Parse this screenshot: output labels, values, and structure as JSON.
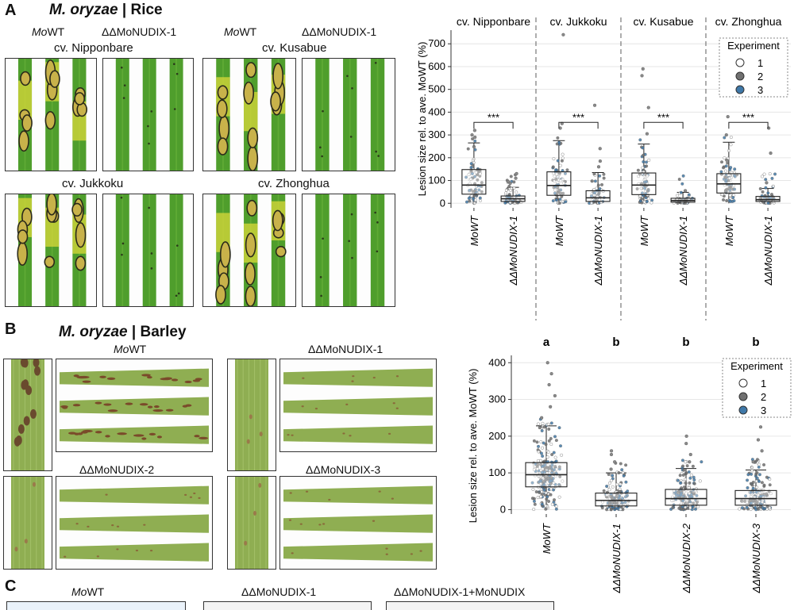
{
  "panel_a": {
    "letter": "A",
    "species": "M. oryzae",
    "host_sep": " | ",
    "host": "Rice",
    "header_wt_left": "WT",
    "header_wt_right": "WT",
    "header_mut_left": "ΔΔMoNUDIX-1",
    "header_mut_right": "ΔΔMoNUDIX-1",
    "cultivars": {
      "nipponbare": "cv. Nipponbare",
      "kusabue": "cv. Kusabue",
      "jukkoku": "cv. Jukkoku",
      "zhonghua": "cv. Zhonghua"
    }
  },
  "panel_b": {
    "letter": "B",
    "species": "M. oryzae",
    "host_sep": " | ",
    "host": "Barley",
    "strain_wt": "WT",
    "strain_1": "ΔΔMoNUDIX-1",
    "strain_2": "ΔΔMoNUDIX-2",
    "strain_3": "ΔΔMoNUDIX-3"
  },
  "panel_c": {
    "letter": "C",
    "label_wt": "WT",
    "label_mut": "ΔΔMoNUDIX-1",
    "label_comp": "ΔΔMoNUDIX-1+MoNUDIX"
  },
  "colors": {
    "leaf_green": "#4f9e2c",
    "leaf_yellow": "#d9d83a",
    "barley_green": "#8fae52",
    "exp1": "#ffffff",
    "exp2": "#707070",
    "exp3": "#3f78a8"
  },
  "chart_data": [
    {
      "type": "box",
      "panel": "A",
      "ylabel": "Lesion size rel. to ave. MoWT (%)",
      "ylim": [
        -20,
        760
      ],
      "yticks": [
        0,
        100,
        200,
        300,
        400,
        500,
        600,
        700
      ],
      "facets": [
        "cv. Nipponbare",
        "cv. Jukkoku",
        "cv. Kusabue",
        "cv. Zhonghua"
      ],
      "categories": [
        "MoWT",
        "ΔΔMoNUDIX-1"
      ],
      "significance": [
        "***",
        "***",
        "***",
        "***"
      ],
      "legend": {
        "title": "Experiment",
        "entries": [
          "1",
          "2",
          "3"
        ]
      },
      "series": [
        {
          "facet": "cv. Nipponbare",
          "name": "MoWT",
          "q1": 40,
          "median": 80,
          "q3": 148,
          "whisker_low": 0,
          "whisker_high": 265,
          "outliers": [
            300,
            320,
            290
          ]
        },
        {
          "facet": "cv. Nipponbare",
          "name": "ΔΔMoNUDIX-1",
          "q1": 8,
          "median": 20,
          "q3": 32,
          "whisker_low": 0,
          "whisker_high": 70,
          "outliers": [
            95,
            110,
            88,
            130
          ]
        },
        {
          "facet": "cv. Jukkoku",
          "name": "MoWT",
          "q1": 35,
          "median": 78,
          "q3": 138,
          "whisker_low": 0,
          "whisker_high": 275,
          "outliers": [
            330,
            350,
            740
          ]
        },
        {
          "facet": "cv. Jukkoku",
          "name": "ΔΔMoNUDIX-1",
          "q1": 8,
          "median": 24,
          "q3": 55,
          "whisker_low": 0,
          "whisker_high": 135,
          "outliers": [
            160,
            185,
            240,
            430
          ]
        },
        {
          "facet": "cv. Kusabue",
          "name": "MoWT",
          "q1": 38,
          "median": 80,
          "q3": 133,
          "whisker_low": 0,
          "whisker_high": 260,
          "outliers": [
            305,
            420,
            560,
            590
          ]
        },
        {
          "facet": "cv. Kusabue",
          "name": "ΔΔMoNUDIX-1",
          "q1": 5,
          "median": 12,
          "q3": 22,
          "whisker_low": 0,
          "whisker_high": 48,
          "outliers": [
            55
          ]
        },
        {
          "facet": "cv. Zhonghua",
          "name": "MoWT",
          "q1": 45,
          "median": 85,
          "q3": 130,
          "whisker_low": 0,
          "whisker_high": 268,
          "outliers": [
            300,
            380
          ]
        },
        {
          "facet": "cv. Zhonghua",
          "name": "ΔΔMoNUDIX-1",
          "q1": 8,
          "median": 16,
          "q3": 30,
          "whisker_low": 0,
          "whisker_high": 65,
          "outliers": [
            90,
            220,
            330
          ]
        }
      ]
    },
    {
      "type": "box",
      "panel": "B",
      "ylabel": "Lesion size rel. to ave. MoWT (%)",
      "ylim": [
        -12,
        420
      ],
      "yticks": [
        0,
        100,
        200,
        300,
        400
      ],
      "categories": [
        "MoWT",
        "ΔΔMoNUDIX-1",
        "ΔΔMoNUDIX-2",
        "ΔΔMoNUDIX-3"
      ],
      "group_letters": [
        "a",
        "b",
        "b",
        "b"
      ],
      "legend": {
        "title": "Experiment",
        "entries": [
          "1",
          "2",
          "3"
        ]
      },
      "series": [
        {
          "name": "MoWT",
          "q1": 62,
          "median": 95,
          "q3": 128,
          "whisker_low": 0,
          "whisker_high": 228,
          "outliers": [
            250,
            280,
            310,
            340,
            370,
            400
          ]
        },
        {
          "name": "ΔΔMoNUDIX-1",
          "q1": 10,
          "median": 25,
          "q3": 45,
          "whisker_low": 0,
          "whisker_high": 100,
          "outliers": [
            110,
            130,
            150,
            160
          ]
        },
        {
          "name": "ΔΔMoNUDIX-2",
          "q1": 12,
          "median": 30,
          "q3": 55,
          "whisker_low": 0,
          "whisker_high": 112,
          "outliers": [
            130,
            150,
            180,
            200
          ]
        },
        {
          "name": "ΔΔMoNUDIX-3",
          "q1": 12,
          "median": 30,
          "q3": 52,
          "whisker_low": 0,
          "whisker_high": 108,
          "outliers": [
            130,
            160,
            190,
            225
          ]
        }
      ]
    }
  ]
}
